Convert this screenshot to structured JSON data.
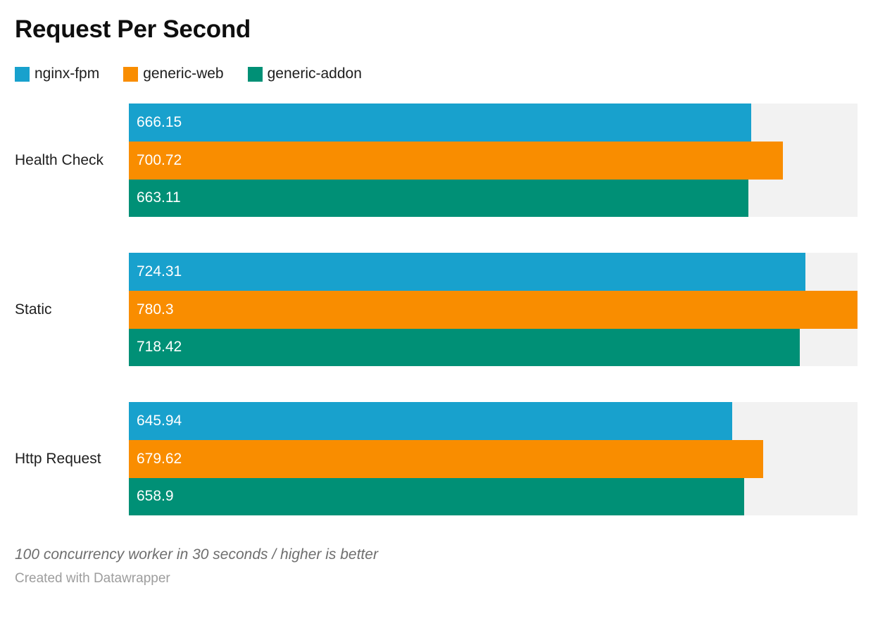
{
  "title": "Request Per Second",
  "chart_data": {
    "type": "bar",
    "orientation": "horizontal",
    "title": "Request Per Second",
    "categories": [
      "Health Check",
      "Static",
      "Http Request"
    ],
    "series": [
      {
        "name": "nginx-fpm",
        "color": "#18a1cd",
        "values": [
          666.15,
          724.31,
          645.94
        ],
        "labels": [
          "666.15",
          "724.31",
          "645.94"
        ]
      },
      {
        "name": "generic-web",
        "color": "#f98d00",
        "values": [
          700.72,
          780.3,
          679.62
        ],
        "labels": [
          "700.72",
          "780.3",
          "679.62"
        ]
      },
      {
        "name": "generic-addon",
        "color": "#009076",
        "values": [
          663.11,
          718.42,
          658.9
        ],
        "labels": [
          "663.11",
          "718.42",
          "658.9"
        ]
      }
    ],
    "value_axis_max": 780.3,
    "xlim": [
      0,
      780.3
    ],
    "grid": false,
    "track_color": "#f2f2f2",
    "legend_position": "top",
    "value_labels": "inside-start",
    "value_label_color": "#ffffff"
  },
  "footer": {
    "note": "100 concurrency worker in 30 seconds / higher is better",
    "attribution": "Created with Datawrapper"
  }
}
